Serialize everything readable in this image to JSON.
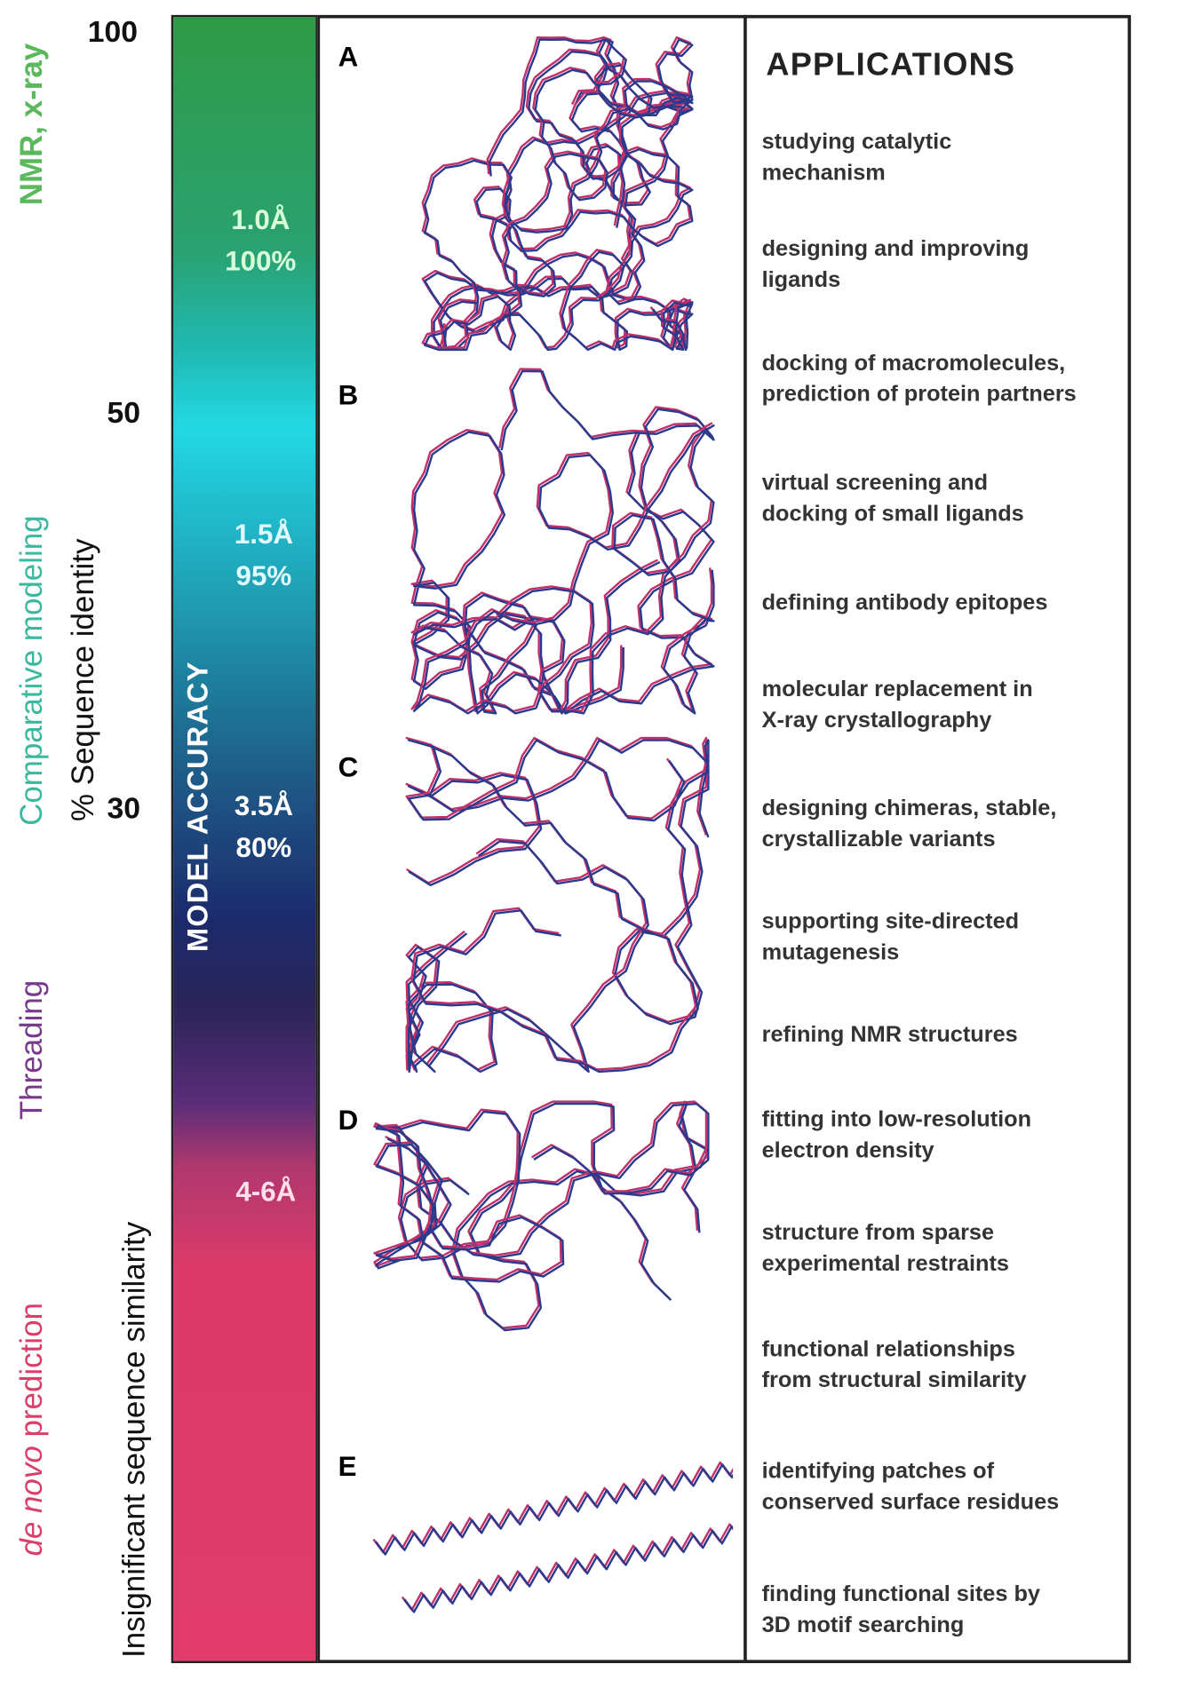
{
  "axis": {
    "ticks": [
      "100",
      "50",
      "30"
    ],
    "label_identity": "% Sequence identity",
    "label_insignificant": "Insignificant sequence similarity"
  },
  "methods": {
    "nmr": {
      "text": "NMR, x-ray",
      "color": "#5cb85c"
    },
    "comparative": {
      "text": "Comparative modeling",
      "color": "#3cb8a0"
    },
    "threading": {
      "text": "Threading",
      "color": "#7a3a8c"
    },
    "denovo": {
      "italic": "de novo",
      "text": " prediction",
      "color": "#d8406a"
    }
  },
  "bar": {
    "title": "MODEL ACCURACY",
    "levels": [
      {
        "rmsd": "1.0Å",
        "pct": "100%"
      },
      {
        "rmsd": "1.5Å",
        "pct": "95%"
      },
      {
        "rmsd": "3.5Å",
        "pct": "80%"
      },
      {
        "rmsd": "4-6Å",
        "pct": ""
      }
    ]
  },
  "panels": [
    "A",
    "B",
    "C",
    "D",
    "E"
  ],
  "applications": {
    "title": "APPLICATIONS",
    "items": [
      [
        "studying catalytic",
        "mechanism"
      ],
      [
        "designing and improving",
        "ligands"
      ],
      [
        "docking of macromolecules,",
        "prediction of protein partners"
      ],
      [
        "virtual screening and",
        "docking of small ligands"
      ],
      [
        "defining antibody epitopes",
        ""
      ],
      [
        "molecular replacement in",
        "X-ray crystallography"
      ],
      [
        "designing chimeras, stable,",
        "crystallizable variants"
      ],
      [
        "supporting site-directed",
        "mutagenesis"
      ],
      [
        "refining NMR structures",
        ""
      ],
      [
        "fitting into low-resolution",
        "electron density"
      ],
      [
        "structure from sparse",
        "experimental restraints"
      ],
      [
        "functional relationships",
        "from structural similarity"
      ],
      [
        "identifying patches of",
        "conserved surface residues"
      ],
      [
        "finding functional sites by",
        "3D motif searching"
      ]
    ]
  },
  "colors": {
    "trace_a": "#c0306a",
    "trace_b": "#2a3a8c"
  }
}
